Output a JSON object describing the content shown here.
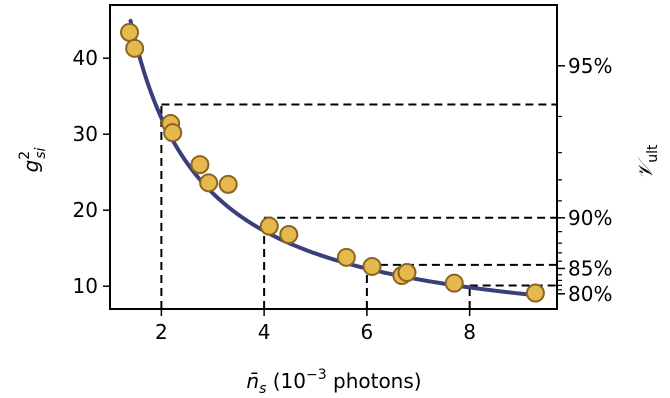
{
  "chart_data": {
    "type": "scatter",
    "xlabel": "n̄_s (10^-3 photons)",
    "ylabel": "g^2_si",
    "y2label": "V_ult",
    "xlim": [
      1.0,
      9.7
    ],
    "ylim": [
      7.0,
      47.0
    ],
    "xticks": [
      2,
      4,
      6,
      8
    ],
    "yticks": [
      10,
      20,
      30,
      40
    ],
    "y2ticks": [
      {
        "label": "95%",
        "g2": 39.0
      },
      {
        "label": "90%",
        "g2": 19.0
      },
      {
        "label": "85%",
        "g2": 12.33
      },
      {
        "label": "80%",
        "g2": 9.0
      }
    ],
    "series": [
      {
        "kind": "scatter",
        "x": [
          1.38,
          1.48,
          2.18,
          2.22,
          2.75,
          2.92,
          3.3,
          4.1,
          4.48,
          5.6,
          6.1,
          6.68,
          6.78,
          7.7,
          9.28
        ],
        "y": [
          43.4,
          41.3,
          31.4,
          30.2,
          26.0,
          23.6,
          23.4,
          17.9,
          16.8,
          13.8,
          12.6,
          11.4,
          11.8,
          10.4,
          9.1
        ]
      },
      {
        "kind": "line",
        "model": "a/x + b",
        "a": 59.5,
        "b": 2.4,
        "x_range": [
          1.4,
          9.3
        ]
      }
    ],
    "guides": [
      {
        "x": 2.0,
        "y": 33.9
      },
      {
        "x": 4.0,
        "y": 19.0
      },
      {
        "x": 6.0,
        "y": 12.8
      },
      {
        "x": 8.0,
        "y": 10.1
      }
    ],
    "colors": {
      "marker_fill": "#e6b94e",
      "marker_edge": "#8c6420",
      "line": "#3a3f7b",
      "axis": "#000000"
    }
  }
}
